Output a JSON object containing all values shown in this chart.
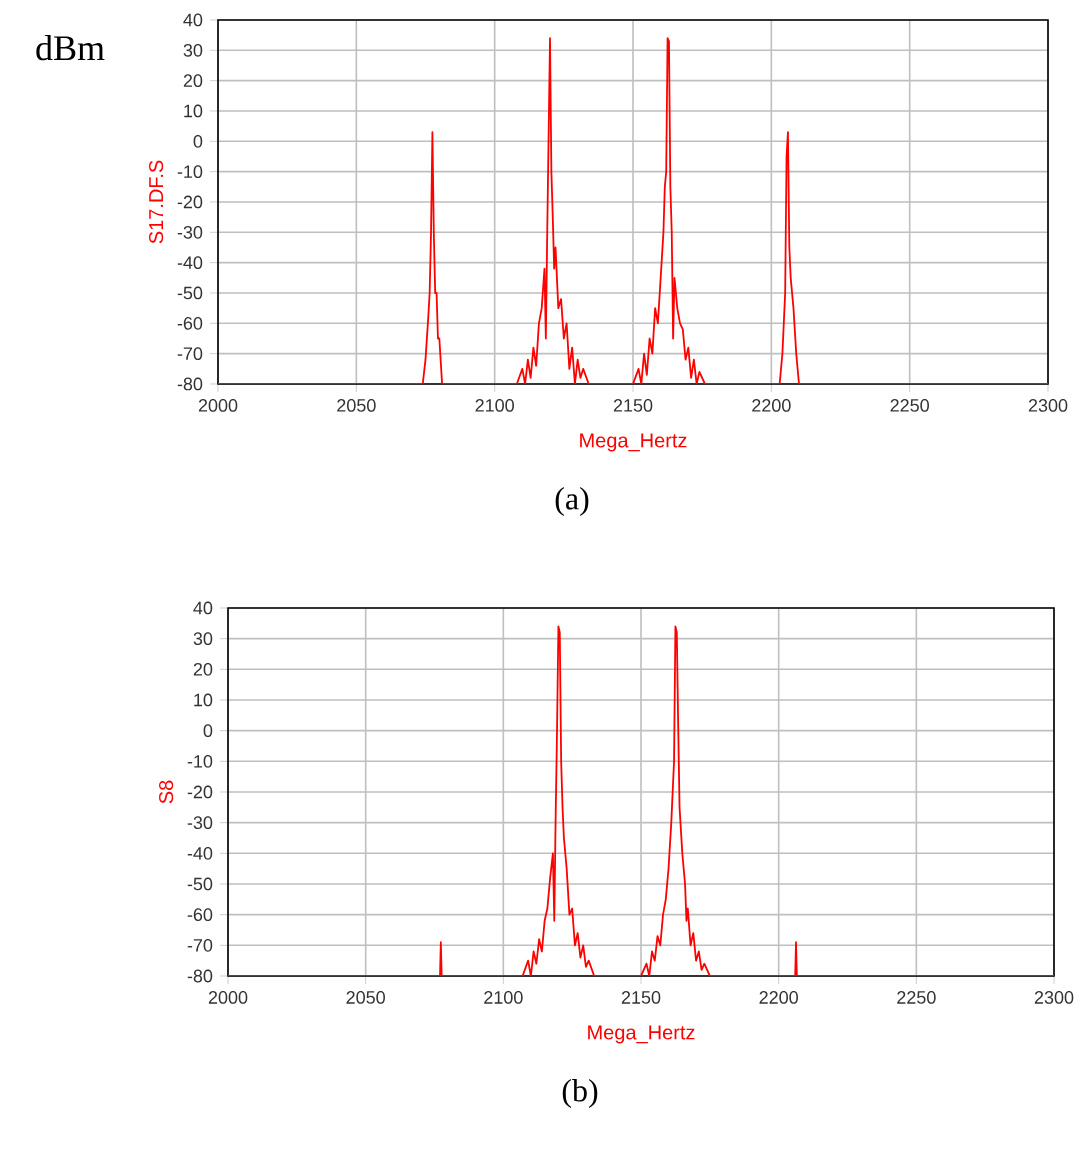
{
  "chart_data": [
    {
      "type": "line",
      "xlabel": "Mega_Hertz",
      "ylabel": "S17.DF.S",
      "annotations": [
        "dBm",
        "(a)"
      ],
      "xlim": [
        2000,
        2300
      ],
      "ylim": [
        -80,
        40
      ],
      "xticks": [
        2000,
        2050,
        2100,
        2150,
        2200,
        2250,
        2300
      ],
      "yticks": [
        -80,
        -70,
        -60,
        -50,
        -40,
        -30,
        -20,
        -10,
        0,
        10,
        20,
        30,
        40
      ],
      "grid": true,
      "series": [
        {
          "color": "#ff0000",
          "x": [
            2000,
            2074,
            2075,
            2076,
            2076.5,
            2077,
            2077.5,
            2078,
            2078.5,
            2079,
            2079.5,
            2080,
            2081,
            2108,
            2110,
            2111,
            2112,
            2113,
            2114,
            2115,
            2116,
            2117,
            2118,
            2118.5,
            2119,
            2119.5,
            2120,
            2120.5,
            2121,
            2121.5,
            2122,
            2123,
            2124,
            2125,
            2126,
            2127,
            2128,
            2129,
            2130,
            2131,
            2132,
            2134,
            2150,
            2152,
            2153,
            2154,
            2155,
            2156,
            2157,
            2158,
            2159,
            2160,
            2161,
            2161.5,
            2162,
            2162.5,
            2163,
            2163.5,
            2164,
            2164.5,
            2165,
            2166,
            2167,
            2168,
            2169,
            2170,
            2171,
            2172,
            2173,
            2174,
            2176,
            2203,
            2204,
            2205,
            2205.5,
            2206,
            2206.5,
            2207,
            2208,
            2209,
            2210,
            2300
          ],
          "values": [
            -80,
            -80,
            -72,
            -58,
            -50,
            -30,
            3,
            -30,
            -50,
            -50,
            -65,
            -65,
            -80,
            -80,
            -75,
            -80,
            -72,
            -78,
            -68,
            -74,
            -60,
            -55,
            -42,
            -65,
            -30,
            2,
            34,
            -10,
            -25,
            -42,
            -35,
            -55,
            -52,
            -65,
            -60,
            -75,
            -68,
            -80,
            -72,
            -78,
            -75,
            -80,
            -80,
            -75,
            -80,
            -70,
            -77,
            -65,
            -70,
            -55,
            -60,
            -45,
            -30,
            -15,
            -10,
            34,
            33,
            -15,
            -30,
            -65,
            -45,
            -55,
            -60,
            -62,
            -72,
            -68,
            -78,
            -72,
            -80,
            -76,
            -80,
            -80,
            -70,
            -50,
            -5,
            3,
            -35,
            -45,
            -55,
            -70,
            -80,
            -80
          ]
        }
      ]
    },
    {
      "type": "line",
      "xlabel": "Mega_Hertz",
      "ylabel": "S8",
      "annotations": [
        "(b)"
      ],
      "xlim": [
        2000,
        2300
      ],
      "ylim": [
        -80,
        40
      ],
      "xticks": [
        2000,
        2050,
        2100,
        2150,
        2200,
        2250,
        2300
      ],
      "yticks": [
        -80,
        -70,
        -60,
        -50,
        -40,
        -30,
        -20,
        -10,
        0,
        10,
        20,
        30,
        40
      ],
      "grid": true,
      "series": [
        {
          "color": "#ff0000",
          "x": [
            2000,
            2077,
            2077.3,
            2077.6,
            2107,
            2109,
            2110,
            2111,
            2112,
            2113,
            2114,
            2115,
            2116,
            2117,
            2118,
            2118.5,
            2119,
            2119.5,
            2120,
            2120.5,
            2121,
            2121.5,
            2122,
            2123,
            2124,
            2125,
            2126,
            2127,
            2128,
            2129,
            2130,
            2131,
            2133,
            2150,
            2152,
            2153,
            2154,
            2155,
            2156,
            2157,
            2158,
            2159,
            2160,
            2161,
            2162,
            2162.5,
            2163,
            2163.5,
            2164,
            2165,
            2166,
            2166.5,
            2167,
            2168,
            2169,
            2170,
            2171,
            2172,
            2173,
            2175,
            2206,
            2206.3,
            2206.6,
            2300
          ],
          "values": [
            -80,
            -80,
            -69,
            -80,
            -80,
            -75,
            -80,
            -72,
            -76,
            -68,
            -72,
            -62,
            -58,
            -48,
            -40,
            -62,
            -28,
            0,
            34,
            32,
            -10,
            -25,
            -35,
            -45,
            -60,
            -58,
            -70,
            -66,
            -74,
            -70,
            -77,
            -75,
            -80,
            -80,
            -76,
            -80,
            -72,
            -75,
            -67,
            -70,
            -60,
            -55,
            -45,
            -30,
            -10,
            34,
            32,
            2,
            -25,
            -40,
            -50,
            -62,
            -58,
            -70,
            -66,
            -75,
            -72,
            -78,
            -76,
            -80,
            -80,
            -69,
            -80,
            -80
          ]
        }
      ]
    }
  ]
}
